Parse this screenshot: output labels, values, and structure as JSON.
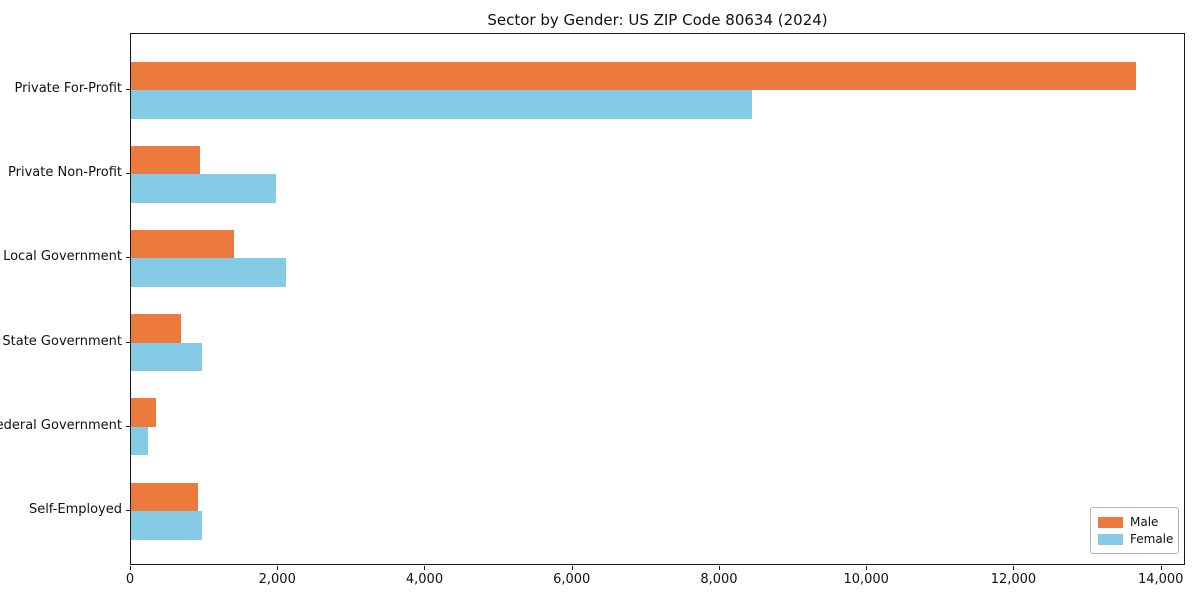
{
  "title": "Sector by Gender: US ZIP Code 80634 (2024)",
  "chart_data": {
    "type": "bar",
    "orientation": "horizontal",
    "title": "Sector by Gender: US ZIP Code 80634 (2024)",
    "categories": [
      "Private For-Profit",
      "Private Non-Profit",
      "Local Government",
      "State Government",
      "Federal Government",
      "Self-Employed"
    ],
    "series": [
      {
        "name": "Male",
        "color": "#EC7A3C",
        "values": [
          13650,
          935,
          1400,
          680,
          340,
          905
        ]
      },
      {
        "name": "Female",
        "color": "#85CBE5",
        "values": [
          8440,
          1965,
          2100,
          960,
          230,
          960
        ]
      }
    ],
    "xlabel": "",
    "ylabel": "",
    "xlim": [
      0,
      14330
    ],
    "xticks": [
      0,
      2000,
      4000,
      6000,
      8000,
      10000,
      12000,
      14000
    ],
    "xtick_labels": [
      "0",
      "2,000",
      "4,000",
      "6,000",
      "8,000",
      "10,000",
      "12,000",
      "14,000"
    ],
    "grid": false,
    "legend_position": "lower right",
    "background": "#ffffff",
    "spine_color": "#1a1a1a"
  }
}
